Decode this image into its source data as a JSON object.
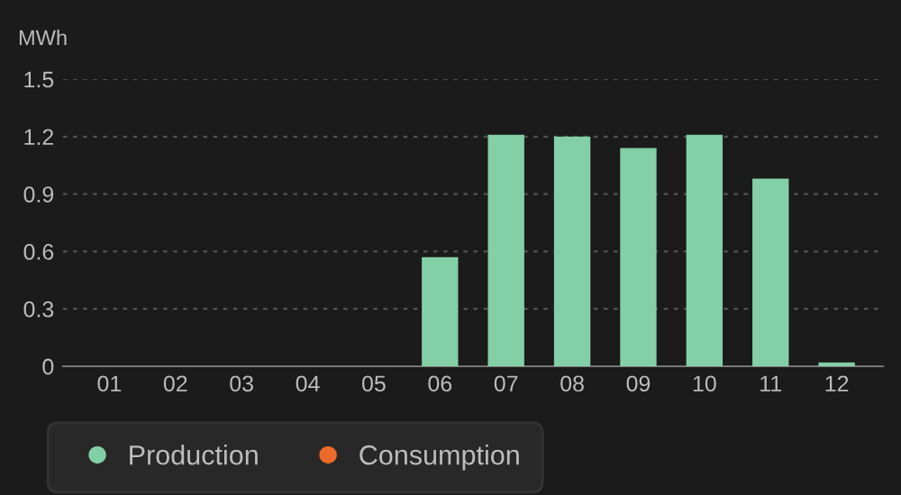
{
  "chart_data": {
    "type": "bar",
    "ylabel": "MWh",
    "categories": [
      "01",
      "02",
      "03",
      "04",
      "05",
      "06",
      "07",
      "08",
      "09",
      "10",
      "11",
      "12"
    ],
    "series": [
      {
        "name": "Production",
        "color": "#83d0a6",
        "values": [
          0,
          0,
          0,
          0,
          0,
          0.57,
          1.21,
          1.2,
          1.14,
          1.21,
          0.98,
          0.02
        ]
      },
      {
        "name": "Consumption",
        "color": "#ee6a2c",
        "values": [
          null,
          null,
          null,
          null,
          null,
          null,
          null,
          null,
          null,
          null,
          null,
          null
        ]
      }
    ],
    "ylim": [
      0,
      1.5
    ],
    "yticks": [
      0,
      0.3,
      0.6,
      0.9,
      1.2,
      1.5
    ],
    "grid": "y",
    "legend": "bottom left"
  }
}
